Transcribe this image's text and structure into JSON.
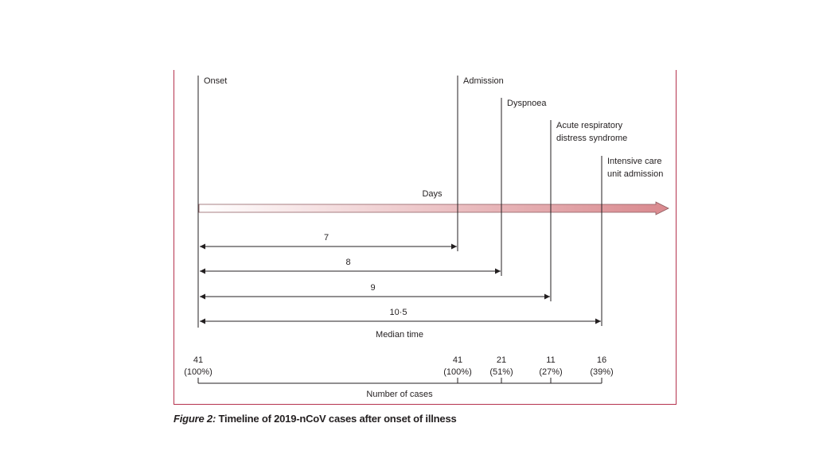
{
  "events": [
    {
      "lines": [
        "Onset"
      ]
    },
    {
      "lines": [
        "Admission"
      ]
    },
    {
      "lines": [
        "Dyspnoea"
      ]
    },
    {
      "lines": [
        "Acute respiratory",
        "distress syndrome"
      ]
    },
    {
      "lines": [
        "Intensive care",
        "unit admission"
      ]
    }
  ],
  "axis_label": "Days",
  "median_intervals": [
    "7",
    "8",
    "9",
    "10·5"
  ],
  "median_label": "Median time",
  "case_counts": [
    {
      "count": "41",
      "pct": "(100%)"
    },
    {
      "count": "41",
      "pct": "(100%)"
    },
    {
      "count": "21",
      "pct": "(51%)"
    },
    {
      "count": "11",
      "pct": "(27%)"
    },
    {
      "count": "16",
      "pct": "(39%)"
    }
  ],
  "cases_label": "Number of cases",
  "caption": {
    "label": "Figure 2:",
    "text": " Timeline of 2019-nCoV cases after onset of illness"
  },
  "colors": {
    "frame": "#b5324e",
    "arrow_start": "#ffffff",
    "arrow_end": "#d9898e"
  }
}
